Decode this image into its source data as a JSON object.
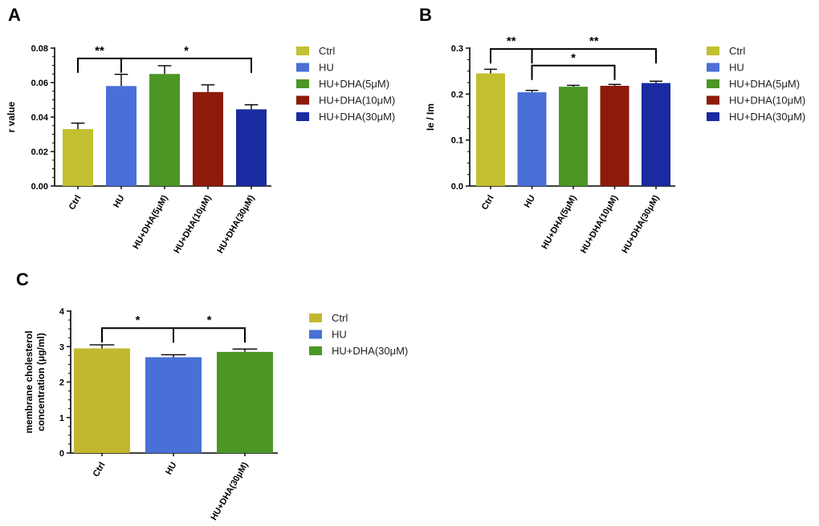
{
  "chart_data": [
    {
      "panel": "A",
      "type": "bar",
      "categories": [
        "Ctrl",
        "HU",
        "HU+DHA(5μM)",
        "HU+DHA(10μM)",
        "HU+DHA(30μM)"
      ],
      "values": [
        0.033,
        0.058,
        0.065,
        0.0545,
        0.0445
      ],
      "errors": [
        0.0035,
        0.0068,
        0.0048,
        0.0042,
        0.0026
      ],
      "colors": [
        "#c2c030",
        "#4a6fd6",
        "#4b9624",
        "#8e1a0a",
        "#1a2aa0"
      ],
      "ylabel": "r value",
      "ylim": [
        0,
        0.08
      ],
      "yticks": [
        0,
        0.02,
        0.04,
        0.06,
        0.08
      ],
      "ytick_labels": [
        "0.00",
        "0.02",
        "0.04",
        "0.06",
        "0.08"
      ],
      "legend": [
        "Ctrl",
        "HU",
        "HU+DHA(5μM)",
        "HU+DHA(10μM)",
        "HU+DHA(30μM)"
      ],
      "legend_position": "right",
      "significance": [
        {
          "from": 0,
          "to": 1,
          "label": "**",
          "level": 0.074
        },
        {
          "from": 1,
          "to": 4,
          "label": "*",
          "level": 0.074
        }
      ]
    },
    {
      "panel": "B",
      "type": "bar",
      "categories": [
        "Ctrl",
        "HU",
        "HU+DHA(5μM)",
        "HU+DHA(10μM)",
        "HU+DHA(30μM)"
      ],
      "values": [
        0.245,
        0.204,
        0.216,
        0.218,
        0.224
      ],
      "errors": [
        0.009,
        0.004,
        0.003,
        0.003,
        0.004
      ],
      "colors": [
        "#c2c030",
        "#4a6fd6",
        "#4b9624",
        "#8e1a0a",
        "#1a2aa0"
      ],
      "ylabel": "Ie / Im",
      "ylim": [
        0,
        0.3
      ],
      "yticks": [
        0,
        0.1,
        0.2,
        0.3
      ],
      "ytick_labels": [
        "0.0",
        "0.1",
        "0.2",
        "0.3"
      ],
      "legend": [
        "Ctrl",
        "HU",
        "HU+DHA(5μM)",
        "HU+DHA(10μM)",
        "HU+DHA(30μM)"
      ],
      "legend_position": "right",
      "significance": [
        {
          "from": 0,
          "to": 1,
          "label": "**",
          "level": 0.298
        },
        {
          "from": 1,
          "to": 3,
          "label": "*",
          "level": 0.262
        },
        {
          "from": 1,
          "to": 4,
          "label": "**",
          "level": 0.298
        }
      ]
    },
    {
      "panel": "C",
      "type": "bar",
      "categories": [
        "Ctrl",
        "HU",
        "HU+DHA(30μM)"
      ],
      "values": [
        2.95,
        2.7,
        2.85
      ],
      "errors": [
        0.1,
        0.07,
        0.08
      ],
      "colors": [
        "#c2b830",
        "#4a6fd6",
        "#4b9624"
      ],
      "ylabel": [
        "membrane cholesterol",
        "concentration (μg/ml)"
      ],
      "ylim": [
        0,
        4
      ],
      "yticks": [
        0,
        1,
        2,
        3,
        4
      ],
      "ytick_labels": [
        "0",
        "1",
        "2",
        "3",
        "4"
      ],
      "legend": [
        "Ctrl",
        "HU",
        "HU+DHA(30μM)"
      ],
      "legend_position": "right",
      "significance": [
        {
          "from": 0,
          "to": 1,
          "label": "*",
          "level": 3.52
        },
        {
          "from": 1,
          "to": 2,
          "label": "*",
          "level": 3.52
        }
      ]
    }
  ]
}
